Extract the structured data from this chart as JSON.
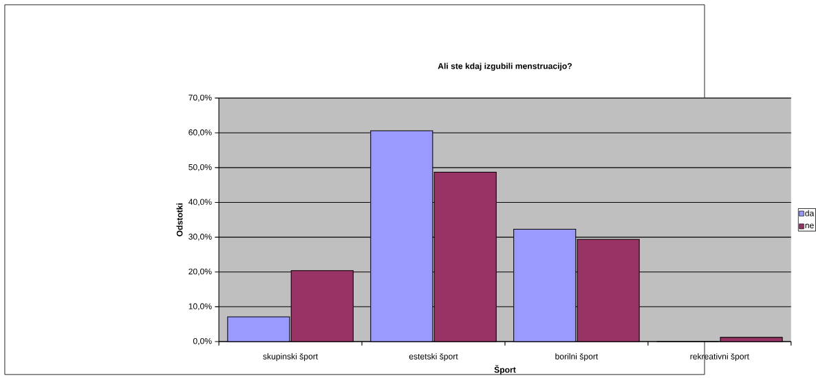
{
  "chart_data": {
    "type": "bar",
    "title": "Ali ste kdaj izgubili menstruacijo?",
    "xlabel": "Šport",
    "ylabel": "Odstotki",
    "categories": [
      "skupinski šport",
      "estetski šport",
      "borilni šport",
      "rekreativni šport"
    ],
    "series": [
      {
        "name": "da",
        "color": "#9999ff",
        "values": [
          7.1,
          60.6,
          32.3,
          0
        ]
      },
      {
        "name": "ne",
        "color": "#993366",
        "values": [
          20.4,
          48.7,
          29.4,
          1.2
        ]
      }
    ],
    "ylim": [
      0,
      70
    ],
    "yticks": [
      {
        "value": 0,
        "label": "0,0%"
      },
      {
        "value": 10,
        "label": "10,0%"
      },
      {
        "value": 20,
        "label": "20,0%"
      },
      {
        "value": 30,
        "label": "30,0%"
      },
      {
        "value": 40,
        "label": "40,0%"
      },
      {
        "value": 50,
        "label": "50,0%"
      },
      {
        "value": 60,
        "label": "60,0%"
      },
      {
        "value": 70,
        "label": "70,0%"
      }
    ],
    "grid": "y",
    "legend": "right"
  }
}
